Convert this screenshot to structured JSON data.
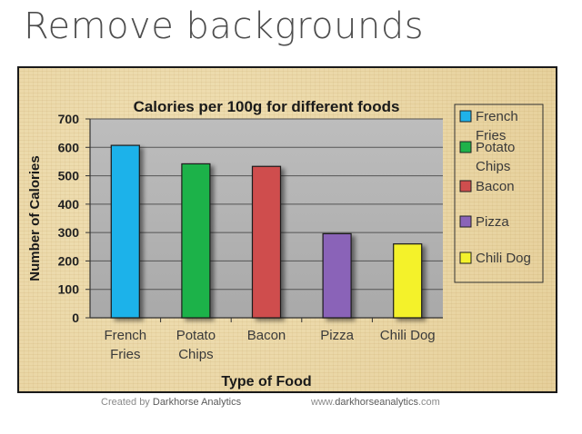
{
  "page": {
    "title": "Remove backgrounds",
    "footer_left_prefix": "Created by",
    "footer_left_brand": "Darkhorse Analytics",
    "footer_right_prefix": "www.",
    "footer_right_brand": "darkhorseanalytics",
    "footer_right_suffix": ".com"
  },
  "chart_data": {
    "type": "bar",
    "title": "Calories per 100g for different foods",
    "xlabel": "Type of Food",
    "ylabel": "Number of Calories",
    "categories": [
      "French Fries",
      "Potato Chips",
      "Bacon",
      "Pizza",
      "Chili Dog"
    ],
    "category_lines": [
      [
        "French",
        "Fries"
      ],
      [
        "Potato",
        "Chips"
      ],
      [
        "Bacon"
      ],
      [
        "Pizza"
      ],
      [
        "Chili Dog"
      ]
    ],
    "values": [
      607,
      542,
      533,
      296,
      260
    ],
    "colors": [
      "#1fb2ea",
      "#1fb24a",
      "#cf4e4e",
      "#8a63b8",
      "#f4f22c"
    ],
    "ylim": [
      0,
      700
    ],
    "yticks": [
      0,
      100,
      200,
      300,
      400,
      500,
      600,
      700
    ],
    "grid": true,
    "legend_position": "right",
    "legend": [
      {
        "lines": [
          "French",
          "Fries"
        ],
        "color": "#1fb2ea"
      },
      {
        "lines": [
          "Potato",
          "Chips"
        ],
        "color": "#1fb24a"
      },
      {
        "lines": [
          "Bacon"
        ],
        "color": "#cf4e4e"
      },
      {
        "lines": [
          "Pizza"
        ],
        "color": "#8a63b8"
      },
      {
        "lines": [
          "Chili Dog"
        ],
        "color": "#f4f22c"
      }
    ]
  }
}
